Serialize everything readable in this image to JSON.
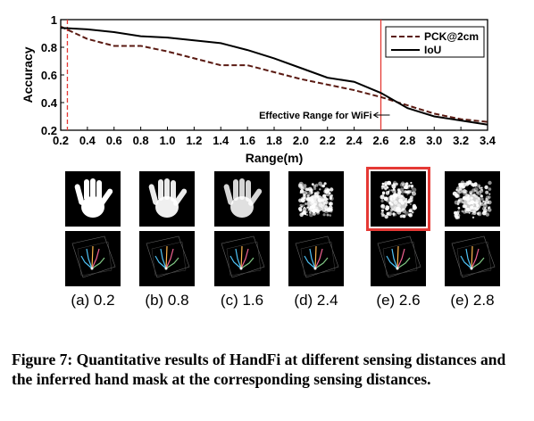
{
  "chart_data": {
    "type": "line",
    "xlabel": "Range(m)",
    "ylabel": "Accuracy",
    "xlim": [
      0.2,
      3.4
    ],
    "ylim": [
      0.2,
      1.0
    ],
    "x_ticks": [
      "0.2",
      "0.4",
      "0.6",
      "0.8",
      "1.0",
      "1.2",
      "1.4",
      "1.6",
      "1.8",
      "2.0",
      "2.2",
      "2.4",
      "2.6",
      "2.8",
      "3.0",
      "3.2",
      "3.4"
    ],
    "y_ticks": [
      "0.2",
      "0.4",
      "0.6",
      "0.8",
      "1"
    ],
    "series": [
      {
        "name": "PCK@2cm",
        "style": "dashed",
        "color": "#5a1a12",
        "x": [
          0.2,
          0.4,
          0.6,
          0.8,
          1.0,
          1.2,
          1.4,
          1.6,
          1.8,
          2.0,
          2.2,
          2.4,
          2.6,
          2.8,
          3.0,
          3.2,
          3.4
        ],
        "y": [
          0.95,
          0.86,
          0.81,
          0.81,
          0.77,
          0.72,
          0.67,
          0.67,
          0.62,
          0.57,
          0.53,
          0.49,
          0.44,
          0.38,
          0.32,
          0.28,
          0.26
        ]
      },
      {
        "name": "IoU",
        "style": "solid",
        "color": "#000000",
        "x": [
          0.2,
          0.4,
          0.6,
          0.8,
          1.0,
          1.2,
          1.4,
          1.6,
          1.8,
          2.0,
          2.2,
          2.4,
          2.6,
          2.8,
          3.0,
          3.2,
          3.4
        ],
        "y": [
          0.94,
          0.93,
          0.91,
          0.88,
          0.87,
          0.85,
          0.83,
          0.78,
          0.72,
          0.65,
          0.58,
          0.55,
          0.47,
          0.36,
          0.3,
          0.27,
          0.24
        ]
      }
    ],
    "vlines": [
      {
        "x": 0.25,
        "style": "dashed",
        "color": "#e53935"
      },
      {
        "x": 2.6,
        "style": "solid",
        "color": "#e53935"
      }
    ],
    "annotation": {
      "text": "Effective Range for WiFi",
      "x": 2.6,
      "y": 0.31
    },
    "legend_position": "top-right",
    "grid": false
  },
  "panels": [
    {
      "label": "(a) 0.2",
      "spread": 0.0,
      "highlight": false
    },
    {
      "label": "(b) 0.8",
      "spread": 0.2,
      "highlight": false
    },
    {
      "label": "(c) 1.6",
      "spread": 0.4,
      "highlight": false
    },
    {
      "label": "(d) 2.4",
      "spread": 0.7,
      "highlight": false
    },
    {
      "label": "(e) 2.6",
      "spread": 0.85,
      "highlight": true
    },
    {
      "label": "(e) 2.8",
      "spread": 1.0,
      "highlight": false
    }
  ],
  "caption": "Figure 7: Quantitative results of HandFi at different sensing distances and the inferred hand mask at the corresponding sensing distances."
}
